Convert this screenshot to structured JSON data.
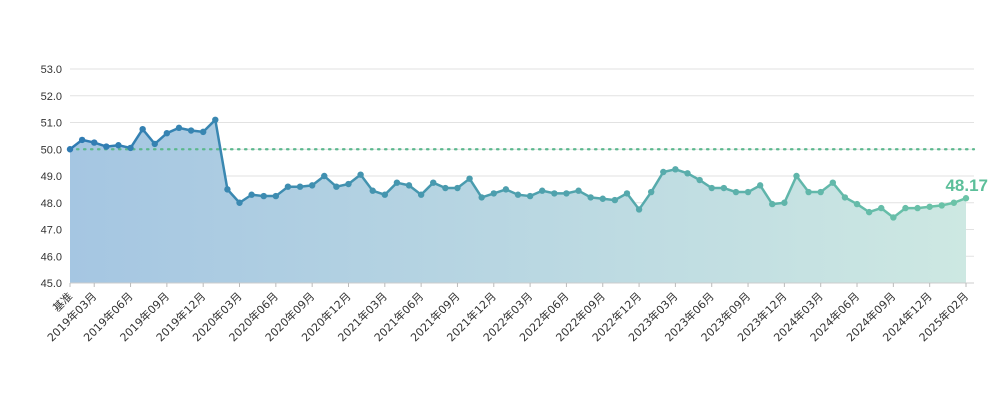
{
  "chart_data": {
    "type": "area",
    "title": "",
    "xlabel": "",
    "ylabel": "",
    "ylim": [
      45.0,
      53.0
    ],
    "y_ticks": [
      "45.0",
      "46.0",
      "47.0",
      "48.0",
      "49.0",
      "50.0",
      "51.0",
      "52.0",
      "53.0"
    ],
    "grid": true,
    "reference_line": 50.0,
    "x_tick_labels": [
      "基准",
      "2019年03月",
      "2019年06月",
      "2019年09月",
      "2019年12月",
      "2020年03月",
      "2020年06月",
      "2020年09月",
      "2020年12月",
      "2021年03月",
      "2021年06月",
      "2021年09月",
      "2021年12月",
      "2022年03月",
      "2022年06月",
      "2022年09月",
      "2022年12月",
      "2023年03月",
      "2023年06月",
      "2023年09月",
      "2023年12月",
      "2024年03月",
      "2024年06月",
      "2024年09月",
      "2024年12月",
      "2025年02月"
    ],
    "values": [
      50.0,
      50.35,
      50.25,
      50.1,
      50.15,
      50.05,
      50.75,
      50.2,
      50.6,
      50.8,
      50.7,
      50.65,
      51.1,
      48.5,
      48.0,
      48.3,
      48.25,
      48.25,
      48.6,
      48.6,
      48.65,
      49.0,
      48.6,
      48.7,
      49.05,
      48.45,
      48.3,
      48.75,
      48.65,
      48.3,
      48.75,
      48.55,
      48.55,
      48.9,
      48.2,
      48.35,
      48.5,
      48.3,
      48.25,
      48.45,
      48.35,
      48.35,
      48.45,
      48.2,
      48.15,
      48.1,
      48.35,
      47.75,
      48.4,
      49.15,
      49.25,
      49.1,
      48.85,
      48.55,
      48.55,
      48.4,
      48.4,
      48.65,
      47.95,
      48.0,
      49.0,
      48.4,
      48.4,
      48.75,
      48.2,
      47.95,
      47.65,
      47.8,
      47.45,
      47.8,
      47.8,
      47.85,
      47.9,
      48.0,
      48.17
    ],
    "last_value_label": "48.17",
    "colors": {
      "line_start": "#2f7bb3",
      "line_end": "#6cc4a8",
      "area_start": "#a5c6e2",
      "area_end": "#cde8e2",
      "reference": "#5cb88e",
      "grid": "#e2e2e2",
      "last_label": "#5cbf9a"
    }
  }
}
